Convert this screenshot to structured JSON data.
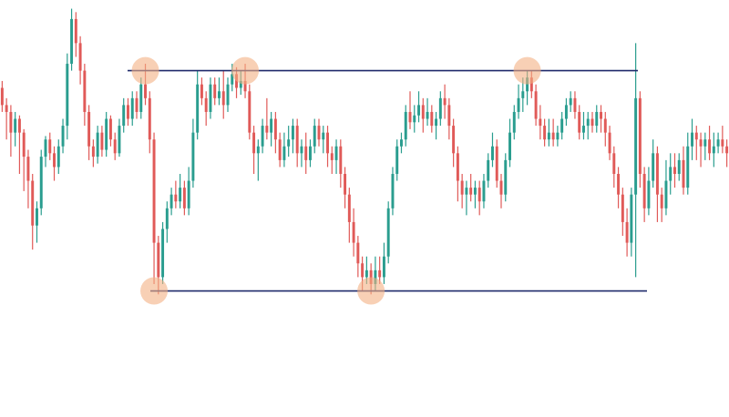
{
  "chart_data": {
    "type": "candlestick",
    "title": "",
    "xlabel": "",
    "ylabel": "",
    "ylim": [
      0,
      100
    ],
    "grid": false,
    "legend": "none",
    "colors": {
      "up": "#2a9d8f",
      "down": "#e05a58",
      "level": "#1f2a6b",
      "touch": "#f4b183"
    },
    "resistance_level": 80,
    "support_level": 16,
    "touch_points": [
      {
        "index": 33,
        "level": "resistance"
      },
      {
        "index": 56,
        "level": "resistance"
      },
      {
        "index": 121,
        "level": "resistance"
      },
      {
        "index": 35,
        "level": "support"
      },
      {
        "index": 85,
        "level": "support"
      }
    ],
    "candles": [
      [
        75,
        70,
        77,
        68
      ],
      [
        70,
        68,
        72,
        60
      ],
      [
        68,
        62,
        70,
        55
      ],
      [
        62,
        66,
        68,
        58
      ],
      [
        66,
        62,
        67,
        50
      ],
      [
        62,
        55,
        63,
        45
      ],
      [
        55,
        48,
        57,
        40
      ],
      [
        48,
        35,
        50,
        28
      ],
      [
        35,
        40,
        42,
        30
      ],
      [
        40,
        55,
        57,
        38
      ],
      [
        55,
        60,
        61,
        52
      ],
      [
        60,
        56,
        62,
        54
      ],
      [
        56,
        52,
        58,
        48
      ],
      [
        52,
        58,
        60,
        50
      ],
      [
        58,
        64,
        66,
        56
      ],
      [
        64,
        82,
        85,
        60
      ],
      [
        82,
        95,
        98,
        80
      ],
      [
        95,
        88,
        97,
        84
      ],
      [
        88,
        80,
        90,
        76
      ],
      [
        80,
        68,
        82,
        64
      ],
      [
        68,
        58,
        70,
        54
      ],
      [
        58,
        55,
        60,
        52
      ],
      [
        55,
        62,
        64,
        53
      ],
      [
        62,
        57,
        64,
        55
      ],
      [
        57,
        66,
        68,
        55
      ],
      [
        66,
        60,
        67,
        58
      ],
      [
        60,
        56,
        62,
        54
      ],
      [
        56,
        64,
        66,
        55
      ],
      [
        64,
        70,
        72,
        62
      ],
      [
        70,
        66,
        72,
        64
      ],
      [
        66,
        72,
        74,
        64
      ],
      [
        72,
        68,
        74,
        66
      ],
      [
        68,
        76,
        78,
        66
      ],
      [
        76,
        72,
        82,
        70
      ],
      [
        72,
        60,
        74,
        56
      ],
      [
        60,
        30,
        62,
        18
      ],
      [
        30,
        20,
        32,
        15
      ],
      [
        20,
        34,
        36,
        18
      ],
      [
        34,
        40,
        42,
        30
      ],
      [
        40,
        44,
        46,
        38
      ],
      [
        44,
        42,
        48,
        40
      ],
      [
        42,
        46,
        50,
        40
      ],
      [
        46,
        40,
        48,
        38
      ],
      [
        40,
        48,
        52,
        38
      ],
      [
        48,
        62,
        66,
        46
      ],
      [
        62,
        76,
        80,
        60
      ],
      [
        76,
        72,
        78,
        70
      ],
      [
        72,
        68,
        74,
        64
      ],
      [
        68,
        76,
        78,
        66
      ],
      [
        76,
        72,
        78,
        70
      ],
      [
        72,
        74,
        78,
        70
      ],
      [
        74,
        70,
        80,
        66
      ],
      [
        70,
        76,
        78,
        68
      ],
      [
        76,
        79,
        82,
        74
      ],
      [
        79,
        75,
        81,
        72
      ],
      [
        75,
        77,
        80,
        73
      ],
      [
        77,
        74,
        82,
        72
      ],
      [
        74,
        62,
        76,
        60
      ],
      [
        62,
        56,
        64,
        50
      ],
      [
        56,
        58,
        60,
        48
      ],
      [
        58,
        64,
        66,
        56
      ],
      [
        64,
        62,
        72,
        60
      ],
      [
        62,
        66,
        68,
        58
      ],
      [
        66,
        60,
        68,
        56
      ],
      [
        60,
        54,
        62,
        52
      ],
      [
        54,
        58,
        62,
        52
      ],
      [
        58,
        60,
        64,
        55
      ],
      [
        60,
        64,
        66,
        56
      ],
      [
        64,
        56,
        66,
        52
      ],
      [
        56,
        58,
        60,
        52
      ],
      [
        58,
        54,
        62,
        50
      ],
      [
        54,
        58,
        60,
        52
      ],
      [
        58,
        64,
        66,
        56
      ],
      [
        64,
        60,
        66,
        58
      ],
      [
        60,
        62,
        64,
        56
      ],
      [
        62,
        56,
        64,
        52
      ],
      [
        56,
        54,
        58,
        50
      ],
      [
        54,
        58,
        60,
        50
      ],
      [
        58,
        50,
        60,
        46
      ],
      [
        50,
        44,
        52,
        40
      ],
      [
        44,
        36,
        46,
        30
      ],
      [
        36,
        30,
        40,
        26
      ],
      [
        30,
        24,
        32,
        20
      ],
      [
        24,
        20,
        26,
        16
      ],
      [
        20,
        22,
        26,
        18
      ],
      [
        22,
        18,
        24,
        15
      ],
      [
        18,
        22,
        26,
        16
      ],
      [
        22,
        20,
        26,
        18
      ],
      [
        20,
        26,
        30,
        18
      ],
      [
        26,
        40,
        42,
        24
      ],
      [
        40,
        50,
        52,
        38
      ],
      [
        50,
        58,
        60,
        48
      ],
      [
        58,
        60,
        62,
        56
      ],
      [
        60,
        68,
        70,
        58
      ],
      [
        68,
        65,
        74,
        63
      ],
      [
        65,
        67,
        70,
        62
      ],
      [
        67,
        70,
        74,
        65
      ],
      [
        70,
        66,
        72,
        62
      ],
      [
        66,
        68,
        72,
        64
      ],
      [
        68,
        64,
        70,
        62
      ],
      [
        64,
        66,
        68,
        60
      ],
      [
        66,
        72,
        74,
        64
      ],
      [
        72,
        70,
        76,
        66
      ],
      [
        70,
        64,
        72,
        60
      ],
      [
        64,
        56,
        66,
        52
      ],
      [
        56,
        48,
        58,
        42
      ],
      [
        48,
        44,
        50,
        40
      ],
      [
        44,
        46,
        48,
        38
      ],
      [
        46,
        44,
        50,
        42
      ],
      [
        44,
        46,
        48,
        40
      ],
      [
        46,
        42,
        48,
        38
      ],
      [
        42,
        48,
        50,
        40
      ],
      [
        48,
        54,
        56,
        46
      ],
      [
        54,
        58,
        62,
        52
      ],
      [
        58,
        48,
        60,
        46
      ],
      [
        48,
        44,
        50,
        40
      ],
      [
        44,
        54,
        56,
        42
      ],
      [
        54,
        62,
        66,
        52
      ],
      [
        62,
        68,
        70,
        60
      ],
      [
        68,
        72,
        76,
        66
      ],
      [
        72,
        74,
        78,
        68
      ],
      [
        74,
        78,
        80,
        70
      ],
      [
        78,
        74,
        80,
        72
      ],
      [
        74,
        66,
        76,
        64
      ],
      [
        66,
        64,
        70,
        60
      ],
      [
        64,
        60,
        66,
        58
      ],
      [
        60,
        62,
        66,
        58
      ],
      [
        62,
        60,
        66,
        58
      ],
      [
        60,
        62,
        64,
        58
      ],
      [
        62,
        66,
        68,
        60
      ],
      [
        66,
        70,
        72,
        64
      ],
      [
        70,
        72,
        74,
        68
      ],
      [
        72,
        68,
        74,
        66
      ],
      [
        68,
        62,
        70,
        60
      ],
      [
        62,
        64,
        68,
        60
      ],
      [
        64,
        66,
        68,
        60
      ],
      [
        66,
        64,
        68,
        62
      ],
      [
        64,
        68,
        70,
        62
      ],
      [
        68,
        66,
        70,
        62
      ],
      [
        66,
        62,
        68,
        58
      ],
      [
        62,
        56,
        64,
        54
      ],
      [
        56,
        50,
        58,
        46
      ],
      [
        50,
        44,
        52,
        40
      ],
      [
        44,
        36,
        46,
        32
      ],
      [
        36,
        30,
        40,
        26
      ],
      [
        30,
        44,
        46,
        26
      ],
      [
        44,
        72,
        88,
        20
      ],
      [
        72,
        50,
        74,
        46
      ],
      [
        50,
        40,
        52,
        36
      ],
      [
        40,
        48,
        52,
        38
      ],
      [
        48,
        56,
        60,
        46
      ],
      [
        56,
        44,
        58,
        36
      ],
      [
        44,
        40,
        46,
        36
      ],
      [
        40,
        48,
        54,
        38
      ],
      [
        48,
        52,
        56,
        44
      ],
      [
        52,
        50,
        56,
        46
      ],
      [
        50,
        54,
        56,
        48
      ],
      [
        54,
        46,
        58,
        44
      ],
      [
        46,
        58,
        62,
        44
      ],
      [
        58,
        62,
        66,
        54
      ],
      [
        62,
        60,
        64,
        54
      ],
      [
        60,
        58,
        62,
        52
      ],
      [
        58,
        60,
        62,
        54
      ],
      [
        60,
        56,
        64,
        54
      ],
      [
        56,
        58,
        62,
        52
      ],
      [
        58,
        60,
        62,
        56
      ],
      [
        60,
        58,
        64,
        56
      ],
      [
        58,
        56,
        60,
        52
      ]
    ]
  }
}
